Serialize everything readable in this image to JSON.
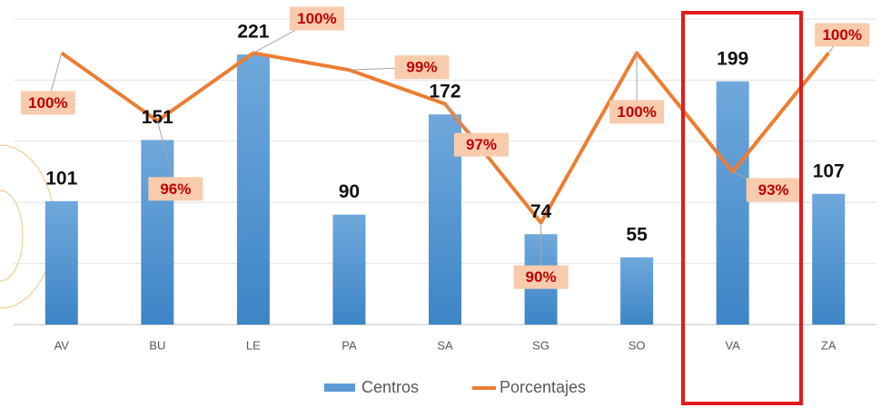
{
  "chart_data": {
    "type": "bar-line",
    "categories": [
      "AV",
      "BU",
      "LE",
      "PA",
      "SA",
      "SG",
      "SO",
      "VA",
      "ZA"
    ],
    "series": [
      {
        "name": "Centros",
        "color": "#5b9bd5",
        "values": [
          101,
          151,
          221,
          90,
          172,
          74,
          55,
          199,
          107
        ]
      },
      {
        "name": "Porcentajes",
        "color": "#ed7d31",
        "axis": "y2",
        "values": [
          100,
          96,
          100,
          99,
          97,
          90,
          100,
          93,
          100
        ],
        "value_labels": [
          "100%",
          "96%",
          "100%",
          "99%",
          "97%",
          "90%",
          "100%",
          "93%",
          "100%"
        ]
      }
    ],
    "ylim": [
      0,
      250
    ],
    "yticks": [
      0,
      50,
      100,
      150,
      200,
      250
    ],
    "y2lim": [
      84,
      102
    ],
    "grid": true
  }
}
